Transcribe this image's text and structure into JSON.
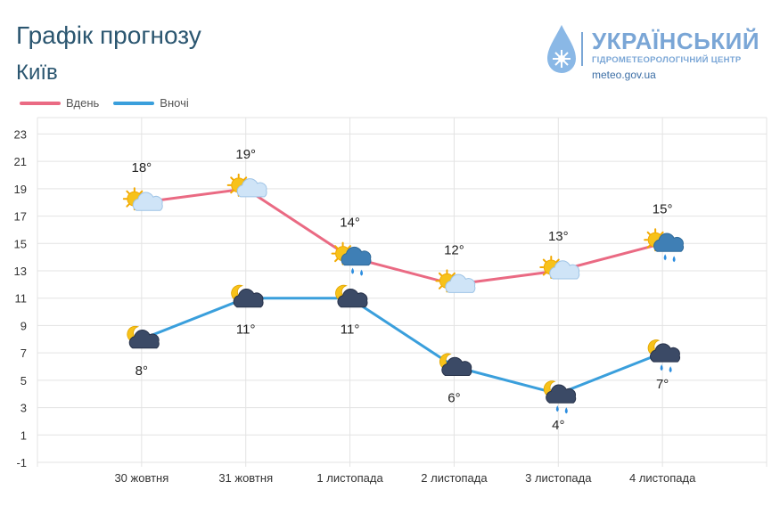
{
  "header": {
    "title": "Графік прогнозу",
    "city": "Київ"
  },
  "logo": {
    "name": "УКРАЇНСЬКИЙ",
    "subtitle": "ГІДРОМЕТЕОРОЛОГІЧНИЙ ЦЕНТР",
    "site": "meteo.gov.ua"
  },
  "legend": {
    "day_label": "Вдень",
    "night_label": "Вночі"
  },
  "colors": {
    "day": "#ea6a83",
    "night": "#3a9fdc",
    "text": "#2b5670"
  },
  "chart_data": {
    "type": "line",
    "categories": [
      "30 жовтня",
      "31 жовтня",
      "1 листопада",
      "2 листопада",
      "3 листопада",
      "4 листопада"
    ],
    "series": [
      {
        "name": "Вдень",
        "values": [
          18,
          19,
          14,
          12,
          13,
          15
        ],
        "labels": [
          "18°",
          "19°",
          "14°",
          "12°",
          "13°",
          "15°"
        ],
        "icons": [
          "sun-cloud-icon",
          "sun-cloud-icon",
          "sun-rain-icon",
          "sun-cloud-icon",
          "sun-cloud-icon",
          "sun-rain-icon"
        ]
      },
      {
        "name": "Вночі",
        "values": [
          8,
          11,
          11,
          6,
          4,
          7
        ],
        "labels": [
          "8°",
          "11°",
          "11°",
          "6°",
          "4°",
          "7°"
        ],
        "icons": [
          "moon-cloud-icon",
          "moon-cloud-icon",
          "moon-cloud-icon",
          "moon-cloud-icon",
          "moon-rain-icon",
          "moon-rain-icon"
        ]
      }
    ],
    "y_ticks": [
      "23",
      "21",
      "19",
      "17",
      "15",
      "13",
      "11",
      "9",
      "7",
      "5",
      "3",
      "1",
      "-1"
    ],
    "ylim": [
      -1,
      23
    ],
    "grid": true
  }
}
